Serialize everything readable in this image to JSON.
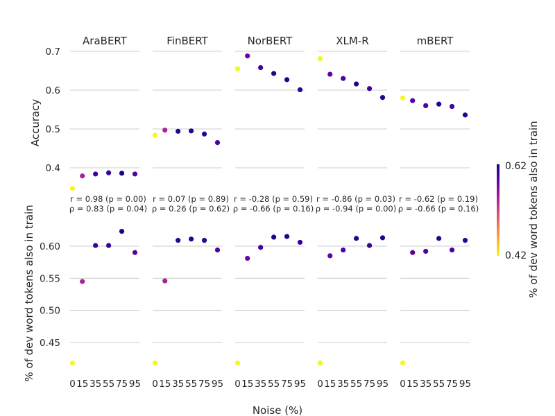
{
  "chart_data": {
    "type": "scatter",
    "panels": [
      "AraBERT",
      "FinBERT",
      "NorBERT",
      "XLM-R",
      "mBERT"
    ],
    "x": [
      0,
      15,
      35,
      55,
      75,
      95
    ],
    "x_tick_labels": [
      "0",
      "15",
      "35",
      "55",
      "75",
      "95"
    ],
    "xlabel": "Noise (%)",
    "top_row": {
      "ylabel": "Accuracy",
      "ylim": [
        0.34,
        0.72
      ],
      "yticks": [
        0.4,
        0.5,
        0.6,
        0.7
      ],
      "ytick_labels": [
        "0.4",
        "0.5",
        "0.6",
        "0.7"
      ],
      "series": [
        {
          "name": "AraBERT",
          "values": [
            0.347,
            0.379,
            0.384,
            0.387,
            0.386,
            0.384
          ]
        },
        {
          "name": "FinBERT",
          "values": [
            0.484,
            0.497,
            0.494,
            0.495,
            0.487,
            0.465
          ]
        },
        {
          "name": "NorBERT",
          "values": [
            0.655,
            0.688,
            0.658,
            0.643,
            0.627,
            0.601
          ]
        },
        {
          "name": "XLM-R",
          "values": [
            0.681,
            0.641,
            0.63,
            0.616,
            0.604,
            0.581
          ]
        },
        {
          "name": "mBERT",
          "values": [
            0.58,
            0.573,
            0.56,
            0.564,
            0.558,
            0.536
          ]
        }
      ]
    },
    "bottom_row": {
      "ylabel": "% of dev word tokens also in train",
      "ylim": [
        0.41,
        0.635
      ],
      "yticks": [
        0.45,
        0.5,
        0.55,
        0.6
      ],
      "ytick_labels": [
        "0.45",
        "0.50",
        "0.55",
        "0.60"
      ],
      "series": [
        {
          "name": "AraBERT",
          "values": [
            0.418,
            0.545,
            0.601,
            0.601,
            0.623,
            0.59
          ]
        },
        {
          "name": "FinBERT",
          "values": [
            0.418,
            0.546,
            0.609,
            0.611,
            0.609,
            0.594
          ]
        },
        {
          "name": "NorBERT",
          "values": [
            0.418,
            0.581,
            0.598,
            0.614,
            0.615,
            0.606
          ]
        },
        {
          "name": "XLM-R",
          "values": [
            0.418,
            0.585,
            0.594,
            0.612,
            0.601,
            0.613
          ]
        },
        {
          "name": "mBERT",
          "values": [
            0.418,
            0.59,
            0.592,
            0.612,
            0.594,
            0.609
          ]
        }
      ]
    },
    "annotations": [
      {
        "panel": "AraBERT",
        "r_text": "r = 0.98 (p = 0.00)",
        "rho_text": "ρ = 0.83 (p = 0.04)"
      },
      {
        "panel": "FinBERT",
        "r_text": "r = 0.07 (p = 0.89)",
        "rho_text": "ρ = 0.26 (p = 0.62)"
      },
      {
        "panel": "NorBERT",
        "r_text": "r = -0.28 (p = 0.59)",
        "rho_text": "ρ = -0.66 (p = 0.16)"
      },
      {
        "panel": "XLM-R",
        "r_text": "r = -0.86 (p = 0.03)",
        "rho_text": "ρ = -0.94 (p = 0.00)"
      },
      {
        "panel": "mBERT",
        "r_text": "r = -0.62 (p = 0.19)",
        "rho_text": "ρ = -0.66 (p = 0.16)"
      }
    ],
    "colorbar": {
      "label": "% of dev word tokens also in train",
      "min": 0.42,
      "max": 0.62,
      "min_label": "0.42",
      "max_label": "0.62",
      "colormap": "plasma_r",
      "color_stops": [
        "#f0f921",
        "#fdb42f",
        "#ed7953",
        "#cc4778",
        "#9c179e",
        "#5c01a6",
        "#0d0887"
      ]
    },
    "grid": "horizontal",
    "legend": "none"
  }
}
